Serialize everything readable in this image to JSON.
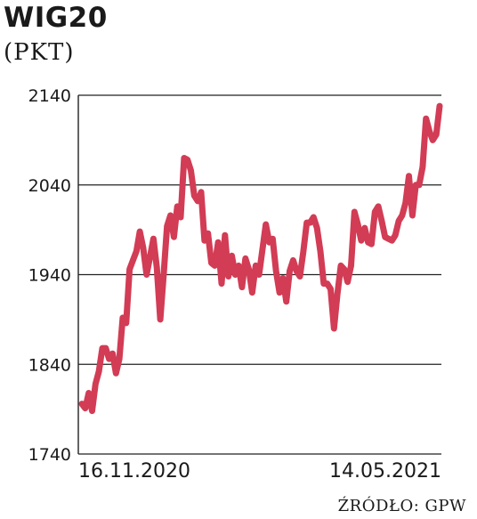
{
  "header": {
    "title": "WIG20",
    "unit": "(PKT)"
  },
  "footer": {
    "source": "ŹRÓDŁO: GPW"
  },
  "chart_data": {
    "type": "line",
    "title": "WIG20",
    "ylabel": "(PKT)",
    "xlabel": "",
    "ylim": [
      1740,
      2140
    ],
    "yticks": [
      1740,
      1840,
      1940,
      2040,
      2140
    ],
    "x_tick_labels": [
      "16.11.2020",
      "14.05.2021"
    ],
    "x_range": [
      "16.11.2020",
      "14.05.2021"
    ],
    "grid": "horizontal",
    "legend": "none",
    "line_color": "#d23c55",
    "series": [
      {
        "values": [
          1796,
          1791,
          1808,
          1788,
          1818,
          1832,
          1858,
          1858,
          1846,
          1852,
          1830,
          1846,
          1892,
          1886,
          1946,
          1956,
          1966,
          1988,
          1970,
          1940,
          1960,
          1980,
          1948,
          1890,
          1940,
          1994,
          2006,
          1982,
          2016,
          2004,
          2070,
          2068,
          2056,
          2028,
          2022,
          2032,
          1978,
          1986,
          1953,
          1950,
          1976,
          1930,
          1984,
          1938,
          1961,
          1940,
          1950,
          1926,
          1958,
          1946,
          1920,
          1950,
          1940,
          1968,
          1996,
          1976,
          1980,
          1944,
          1920,
          1936,
          1910,
          1944,
          1956,
          1944,
          1938,
          1966,
          1998,
          1998,
          2004,
          1992,
          1966,
          1930,
          1930,
          1924,
          1880,
          1918,
          1950,
          1946,
          1932,
          1950,
          2010,
          1996,
          1978,
          1992,
          1976,
          1974,
          2010,
          2016,
          2000,
          1982,
          1980,
          1978,
          1984,
          2000,
          2006,
          2020,
          2050,
          2006,
          2040,
          2040,
          2060,
          2114,
          2100,
          2090,
          2096,
          2128
        ]
      }
    ]
  }
}
